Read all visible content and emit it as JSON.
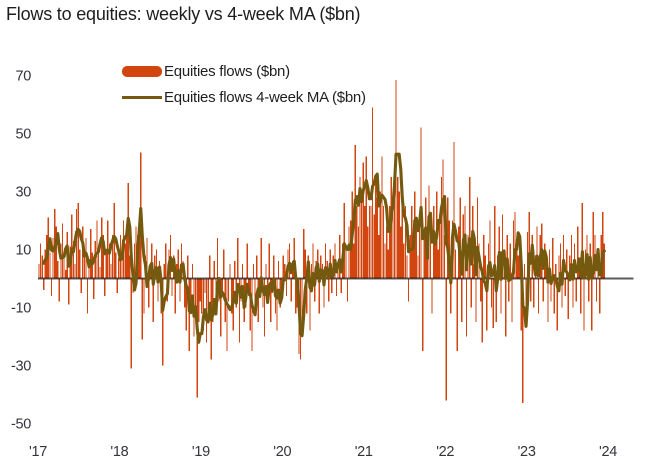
{
  "title": "Flows to equities: weekly vs 4-week MA ($bn)",
  "legend": [
    {
      "label": "Equities flows ($bn)",
      "type": "bar",
      "color": "#d2450f"
    },
    {
      "label": "Equities flows 4-week MA ($bn)",
      "type": "line",
      "color": "#75590e"
    }
  ],
  "colors": {
    "bar": "#d2450f",
    "ma_line": "#75590e",
    "zero_line": "rgba(0,0,0,0.64)",
    "axis_text": "#34343c",
    "title_text": "#1e1e1e",
    "background": "#ffffff"
  },
  "chart_data": {
    "type": "bar",
    "title": "Flows to equities: weekly vs 4-week MA ($bn)",
    "xlabel": "",
    "ylabel": "",
    "frequency": "weekly",
    "ylim": [
      -50,
      70
    ],
    "y_ticks": [
      70,
      50,
      30,
      10,
      -10,
      -30,
      -50
    ],
    "x_tick_labels": [
      "'17",
      "'18",
      "'19",
      "'20",
      "'21",
      "'22",
      "'23",
      "'24"
    ],
    "grid": false,
    "legend_position": "top-left-inside",
    "series": [
      {
        "name": "Equities flows ($bn)",
        "type": "bar",
        "color": "#d2450f",
        "weekly_values_by_year": {
          "2017": [
            5,
            12,
            8,
            -4,
            10,
            15,
            21,
            9,
            -6,
            14,
            24,
            18,
            6,
            -8,
            12,
            19,
            7,
            3,
            16,
            -9,
            11,
            22,
            13,
            5,
            24,
            26,
            10,
            -5,
            18,
            8,
            14,
            -12,
            6,
            17,
            9,
            -7,
            13,
            20,
            11,
            4,
            21,
            15,
            -6,
            9,
            20,
            12,
            5,
            15,
            26,
            9,
            -5,
            7
          ],
          "2018": [
            15,
            10,
            20,
            12,
            18,
            33,
            8,
            -31,
            -5,
            12,
            18,
            15,
            20,
            43.5,
            -21,
            -12,
            8,
            14,
            -10,
            5,
            12,
            -15,
            8,
            10,
            -8,
            6,
            -12,
            -30,
            5,
            12,
            -8,
            10,
            15,
            -6,
            8,
            -12,
            5,
            10,
            -8,
            12,
            6,
            -10,
            -18,
            8,
            -25,
            -12,
            5,
            -20,
            -12,
            -41,
            -15,
            -8
          ],
          "2019": [
            -12,
            -18,
            -5,
            -22,
            -15,
            8,
            -28,
            -15,
            6,
            -12,
            14,
            -8,
            -20,
            -5,
            10,
            -15,
            -25,
            -8,
            5,
            -12,
            -18,
            6,
            -10,
            14,
            -22,
            -8,
            5,
            -15,
            -10,
            12,
            -6,
            -18,
            -25,
            5,
            -12,
            8,
            -15,
            -6,
            14,
            -10,
            -20,
            5,
            -8,
            12,
            -15,
            -5,
            8,
            -12,
            -18,
            6,
            -10,
            -5
          ],
          "2020": [
            8,
            5,
            -6,
            10,
            12,
            -8,
            6,
            14,
            -12,
            -10,
            -26,
            -28,
            -15,
            17,
            10,
            -12,
            8,
            -18,
            5,
            12,
            -8,
            6,
            10,
            -12,
            8,
            5,
            -10,
            12,
            6,
            -8,
            10,
            -5,
            8,
            12,
            -6,
            5,
            15,
            -5,
            12,
            26,
            10,
            -8,
            18,
            20,
            30,
            12,
            46,
            25,
            18,
            35,
            28,
            40
          ],
          "2021": [
            25,
            42,
            18,
            25,
            25,
            59,
            22,
            35,
            28,
            15,
            30,
            42,
            25,
            12,
            18,
            10,
            25,
            35,
            30,
            38,
            68.5,
            35,
            30,
            18,
            28,
            12,
            25,
            8,
            -8,
            15,
            25,
            10,
            30,
            18,
            8,
            20,
            52,
            -25,
            15,
            28,
            10,
            32,
            20,
            -12,
            25,
            15,
            30,
            10,
            22,
            35,
            41,
            15
          ],
          "2022": [
            -42,
            28,
            20,
            -12,
            20,
            47,
            10,
            -25,
            18,
            28,
            -15,
            22,
            25,
            -20,
            15,
            35,
            -10,
            25,
            5,
            -15,
            28,
            12,
            -8,
            -22,
            15,
            8,
            -18,
            12,
            20,
            -10,
            -17,
            25,
            -15,
            8,
            18,
            -12,
            22,
            10,
            -20,
            15,
            -8,
            12,
            -15,
            20,
            23,
            12,
            8,
            15,
            -18,
            -43,
            5,
            -10
          ],
          "2023": [
            16,
            23,
            -8,
            15,
            -10,
            8,
            18,
            -12,
            15,
            19,
            -8,
            12,
            6,
            -15,
            10,
            -8,
            14,
            -12,
            5,
            -18,
            8,
            12,
            -10,
            15,
            -6,
            10,
            -14,
            8,
            15,
            -10,
            12,
            -8,
            18,
            5,
            -12,
            26,
            -18,
            10,
            15,
            -8,
            12,
            -18,
            23,
            15,
            -8,
            10,
            -12,
            15,
            23,
            12
          ]
        }
      },
      {
        "name": "Equities flows 4-week MA ($bn)",
        "type": "line",
        "color": "#75590e",
        "derivation": "4-week trailing moving average of the weekly bar series"
      }
    ]
  }
}
